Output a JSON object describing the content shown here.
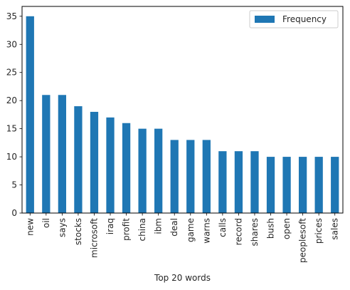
{
  "chart_data": {
    "type": "bar",
    "categories": [
      "new",
      "oil",
      "says",
      "stocks",
      "microsoft",
      "iraq",
      "profit",
      "china",
      "ibm",
      "deal",
      "game",
      "warns",
      "calls",
      "record",
      "shares",
      "bush",
      "open",
      "peoplesoft",
      "prices",
      "sales"
    ],
    "series": [
      {
        "name": "Frequency",
        "values": [
          35,
          21,
          21,
          19,
          18,
          17,
          16,
          15,
          15,
          13,
          13,
          13,
          11,
          11,
          11,
          10,
          10,
          10,
          10,
          10
        ]
      }
    ],
    "title": "",
    "xlabel": "Top 20 words",
    "ylabel": "",
    "ylim": [
      0,
      36.75
    ],
    "yticks": [
      0,
      5,
      10,
      15,
      20,
      25,
      30,
      35
    ],
    "grid": false,
    "legend": "top-right",
    "bar_color": "#1f77b4"
  }
}
